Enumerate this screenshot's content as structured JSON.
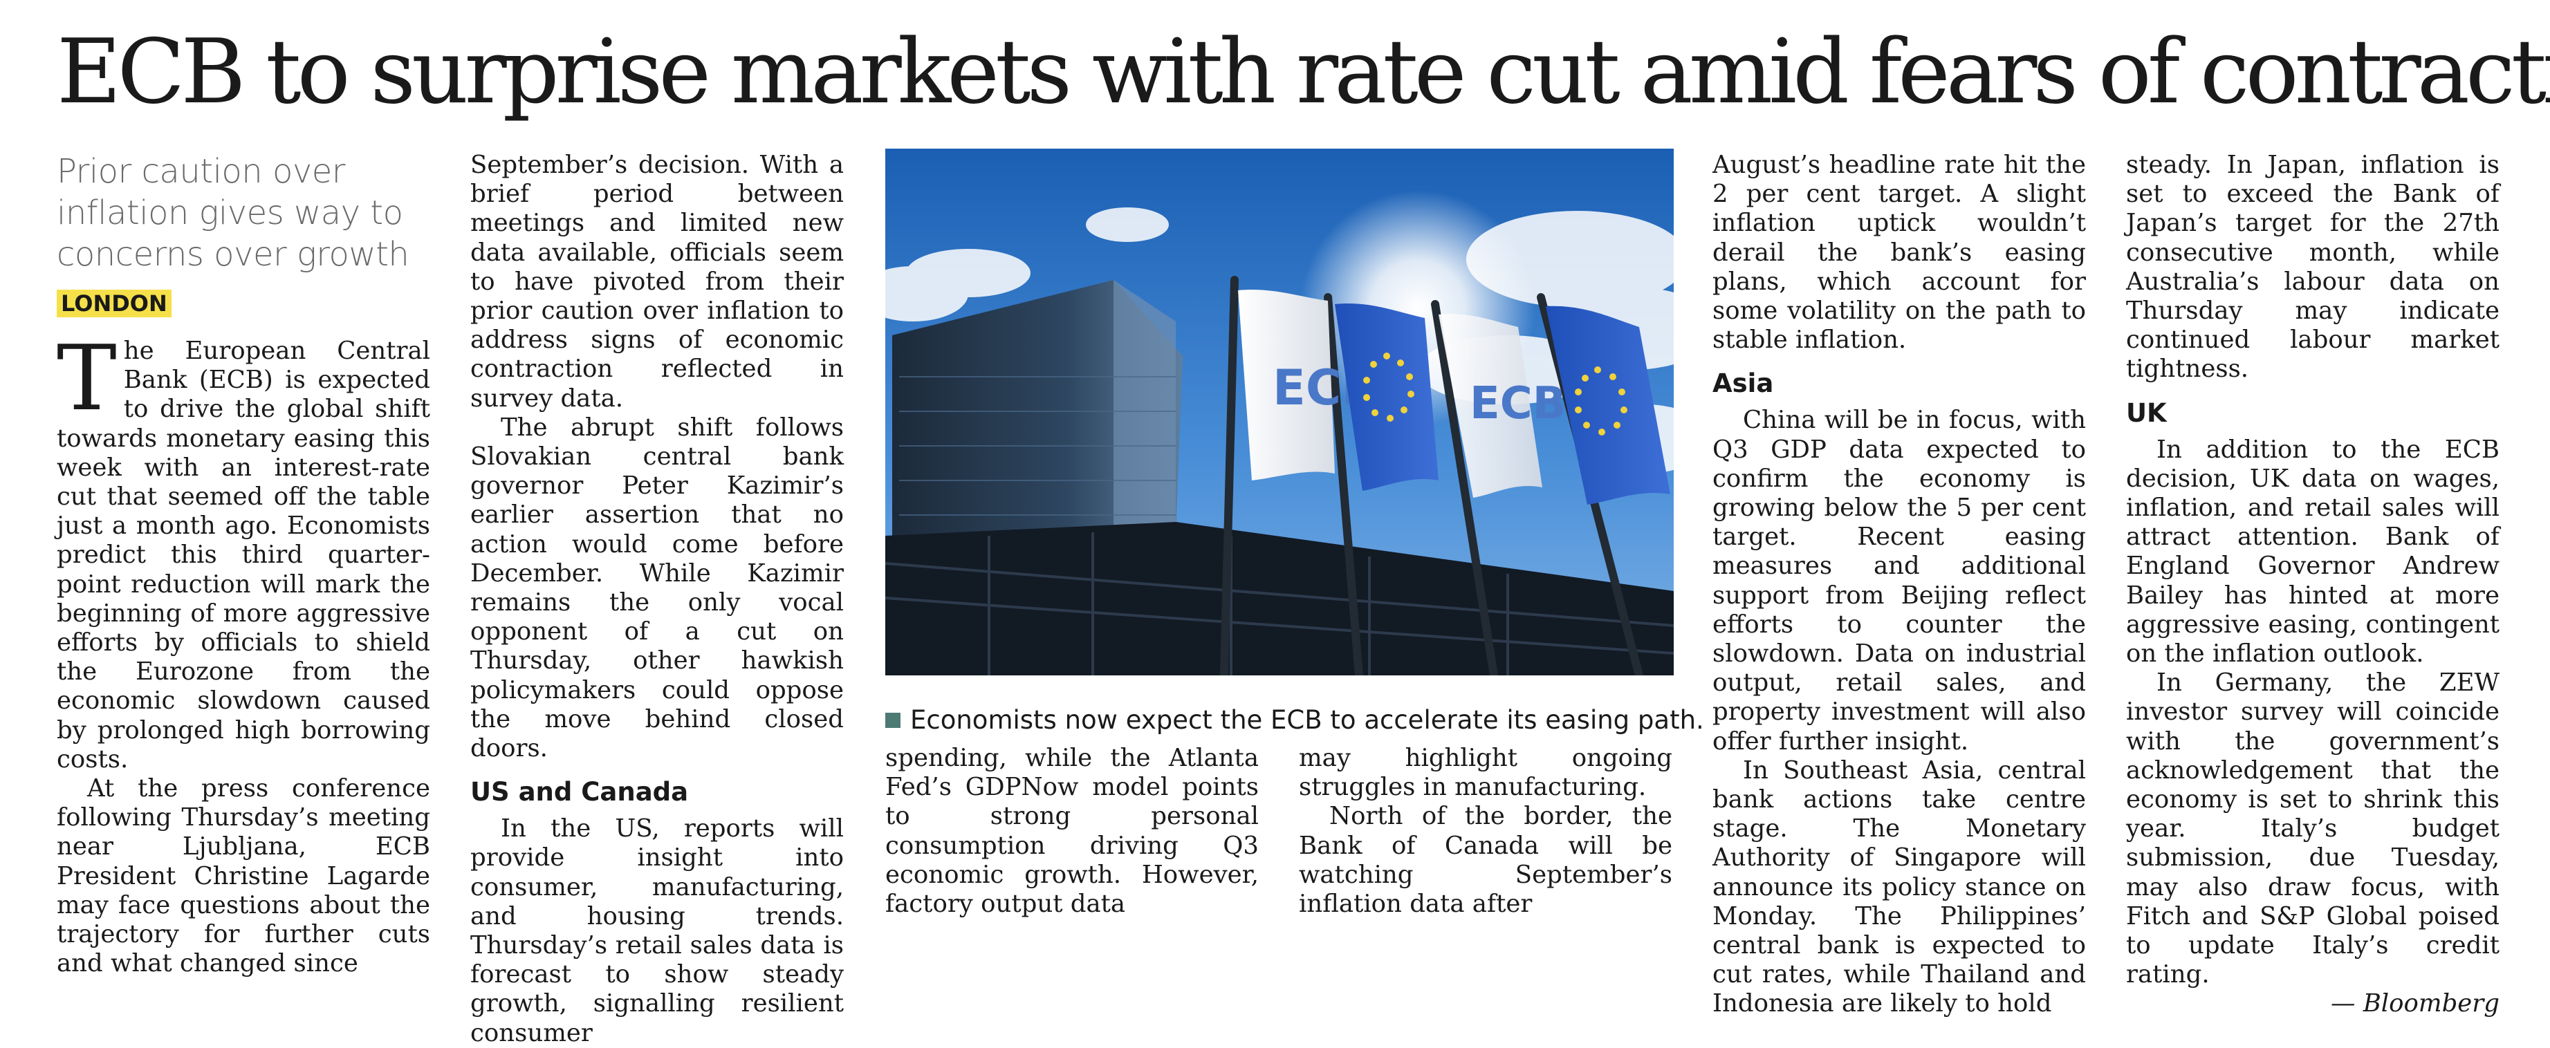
{
  "headline": "ECB to surprise markets with rate cut amid fears of contraction",
  "standfirst": "Prior caution over inflation gives way to concerns over growth",
  "dateline": "LONDON",
  "col1": {
    "dropcap": "T",
    "p1_rest": "he European Central Bank (ECB) is expected to drive the global shift towards monetary easing this week with an interest-rate cut that seemed off the table just a month ago. Economists predict this third quarter-point reduction will mark the beginning of more aggressive efforts by officials to shield the Eurozone from the economic slowdown caused by prolonged high borrowing costs.",
    "p2": "At the press conference following Thursday’s meeting near Ljubljana, ECB President Christine Lagarde may face questions about the trajectory for further cuts and what changed since"
  },
  "col2": {
    "p1": "September’s decision. With a brief period between meetings and limited new data available, officials seem to have pivoted from their prior caution over inflation to address signs of economic contraction reflected in survey data.",
    "p2": "The abrupt shift follows Slovakian central bank governor Peter Kazimir’s earlier assertion that no action would come before December. While Kazimir remains the only vocal opponent of a cut on Thursday, other hawkish policymakers could oppose the move behind closed doors.",
    "heading": "US and Canada",
    "p3": "In the US, reports will provide insight into consumer, manufacturing, and housing trends. Thursday’s retail sales data is forecast to show steady growth, signalling resilient consumer"
  },
  "photo": {
    "flag_label_1": "ECB",
    "flag_label_2": "ECB"
  },
  "caption": "Economists now expect the ECB to accelerate its easing path.",
  "col3": {
    "p1": "spending, while the Atlanta Fed’s GDPNow model points to strong personal consumption driving Q3 economic growth. However, factory output data"
  },
  "col4": {
    "p1": "may highlight ongoing struggles in manufacturing.",
    "p2": "North of the border, the Bank of Canada will be watching September’s inflation data after"
  },
  "col5": {
    "p1": "August’s headline rate hit the 2 per cent target. A slight inflation uptick wouldn’t derail the bank’s easing plans, which account for some volatility on the path to stable inflation.",
    "heading": "Asia",
    "p2": "China will be in focus, with Q3 GDP data expected to confirm the economy is growing below the 5 per cent target. Recent easing measures and additional support from Beijing reflect efforts to counter the slowdown. Data on industrial output, retail sales, and property investment will also offer further insight.",
    "p3": "In Southeast Asia, central bank actions take centre stage. The Monetary Authority of Singapore will announce its policy stance on Monday. The Philippines’ central bank is expected to cut rates, while Thailand and Indonesia are likely to hold"
  },
  "col6": {
    "p1": "steady. In Japan, inflation is set to exceed the Bank of Japan’s target for the 27th consecutive month, while Australia’s labour data on Thursday may indicate continued labour market tightness.",
    "heading": "UK",
    "p2": "In addition to the ECB decision, UK data on wages, inflation, and retail sales will attract attention. Bank of England Governor Andrew Bailey has hinted at more aggressive easing, contingent on the inflation outlook.",
    "p3": "In Germany, the ZEW investor survey will coincide with the government’s acknowledgement that the economy is set to shrink this year. Italy’s budget submission, due Tuesday, may also draw focus, with Fitch and S&P Global poised to update Italy’s credit rating.",
    "credit": "— Bloomberg"
  }
}
